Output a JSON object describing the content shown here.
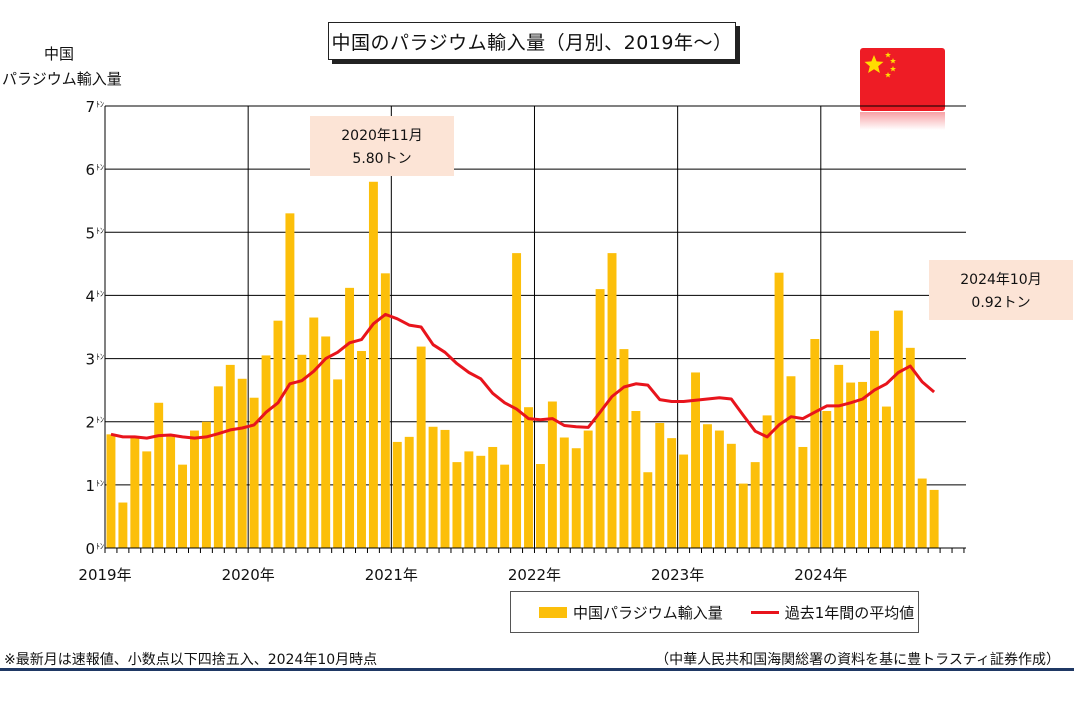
{
  "chart_data": {
    "type": "bar+line",
    "title": "中国のパラジウム輸入量（月別、2019年～）",
    "ylabel_line1": "中国",
    "ylabel_line2": "パラジウム輸入量",
    "ylim": [
      0,
      7
    ],
    "y_tick_unit": "ﾄﾝ",
    "y_ticks": [
      0,
      1,
      2,
      3,
      4,
      5,
      6,
      7
    ],
    "x_ticks": [
      "2019年",
      "2020年",
      "2021年",
      "2022年",
      "2023年",
      "2024年"
    ],
    "grid": true,
    "legend_placement": "bottom-right",
    "series": [
      {
        "name": "中国パラジウム輸入量",
        "kind": "bar",
        "color": "#fcbf0a",
        "values": [
          1.8,
          0.72,
          1.77,
          1.53,
          2.3,
          1.8,
          1.32,
          1.86,
          2.0,
          2.56,
          2.9,
          2.68,
          2.38,
          3.05,
          3.6,
          5.3,
          3.06,
          3.65,
          3.35,
          2.67,
          4.12,
          3.12,
          5.8,
          4.35,
          1.68,
          1.76,
          3.19,
          1.92,
          1.87,
          1.36,
          1.53,
          1.46,
          1.6,
          1.32,
          4.67,
          2.23,
          1.33,
          2.32,
          1.75,
          1.58,
          1.86,
          4.1,
          4.67,
          3.15,
          2.17,
          1.2,
          1.98,
          1.74,
          1.48,
          2.78,
          1.96,
          1.86,
          1.65,
          1.02,
          1.36,
          2.1,
          4.36,
          2.72,
          1.6,
          3.31,
          2.17,
          2.9,
          2.62,
          2.63,
          3.44,
          2.24,
          3.76,
          3.17,
          1.1,
          0.92
        ]
      },
      {
        "name": "過去1年間の平均値",
        "kind": "line",
        "color": "#e8141c",
        "values": [
          1.8,
          1.76,
          1.76,
          1.74,
          1.78,
          1.79,
          1.76,
          1.74,
          1.76,
          1.81,
          1.87,
          1.9,
          1.95,
          2.15,
          2.3,
          2.6,
          2.65,
          2.8,
          3.0,
          3.1,
          3.25,
          3.3,
          3.55,
          3.7,
          3.63,
          3.53,
          3.5,
          3.22,
          3.1,
          2.92,
          2.78,
          2.68,
          2.45,
          2.3,
          2.2,
          2.05,
          2.03,
          2.05,
          1.94,
          1.92,
          1.91,
          2.15,
          2.4,
          2.55,
          2.6,
          2.58,
          2.35,
          2.32,
          2.32,
          2.34,
          2.36,
          2.38,
          2.36,
          2.1,
          1.85,
          1.76,
          1.95,
          2.08,
          2.05,
          2.15,
          2.25,
          2.25,
          2.3,
          2.36,
          2.5,
          2.6,
          2.78,
          2.88,
          2.63,
          2.47
        ]
      }
    ],
    "annotations": [
      {
        "line1": "2020年11月",
        "line2": "5.80トン"
      },
      {
        "line1": "2024年10月",
        "line2": "0.92トン"
      }
    ]
  },
  "footnote_left": "※最新月は速報値、小数点以下四捨五入、2024年10月時点",
  "footnote_right": "（中華人民共和国海関総署の資料を基に豊トラスティ証券作成）",
  "colors": {
    "bar": "#fcbf0a",
    "line": "#e8141c",
    "flag": "#ee1c25",
    "star": "#ffde00",
    "callout": "#fce4d6"
  }
}
